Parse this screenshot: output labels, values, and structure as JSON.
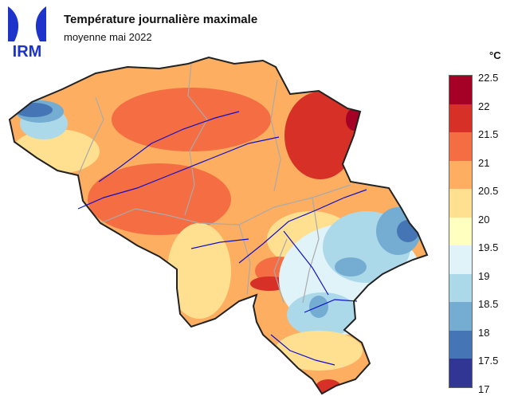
{
  "brand": {
    "logo_text": "IRM",
    "logo_color": "#1d33c9"
  },
  "title": "Température journalière maximale",
  "subtitle": "moyenne mai 2022",
  "legend": {
    "unit": "°C",
    "ticks": [
      "22.5",
      "22",
      "21.5",
      "21",
      "20.5",
      "20",
      "19.5",
      "19",
      "18.5",
      "18",
      "17.5",
      "17"
    ],
    "colors": [
      "#a50026",
      "#d73027",
      "#f46d43",
      "#fdae61",
      "#fee090",
      "#ffffbf",
      "#e0f3f8",
      "#abd9e9",
      "#74add1",
      "#4575b4",
      "#313695"
    ]
  },
  "map": {
    "border_color": "#222222",
    "province_color": "#aaaaaa",
    "river_color": "#1010cc"
  }
}
